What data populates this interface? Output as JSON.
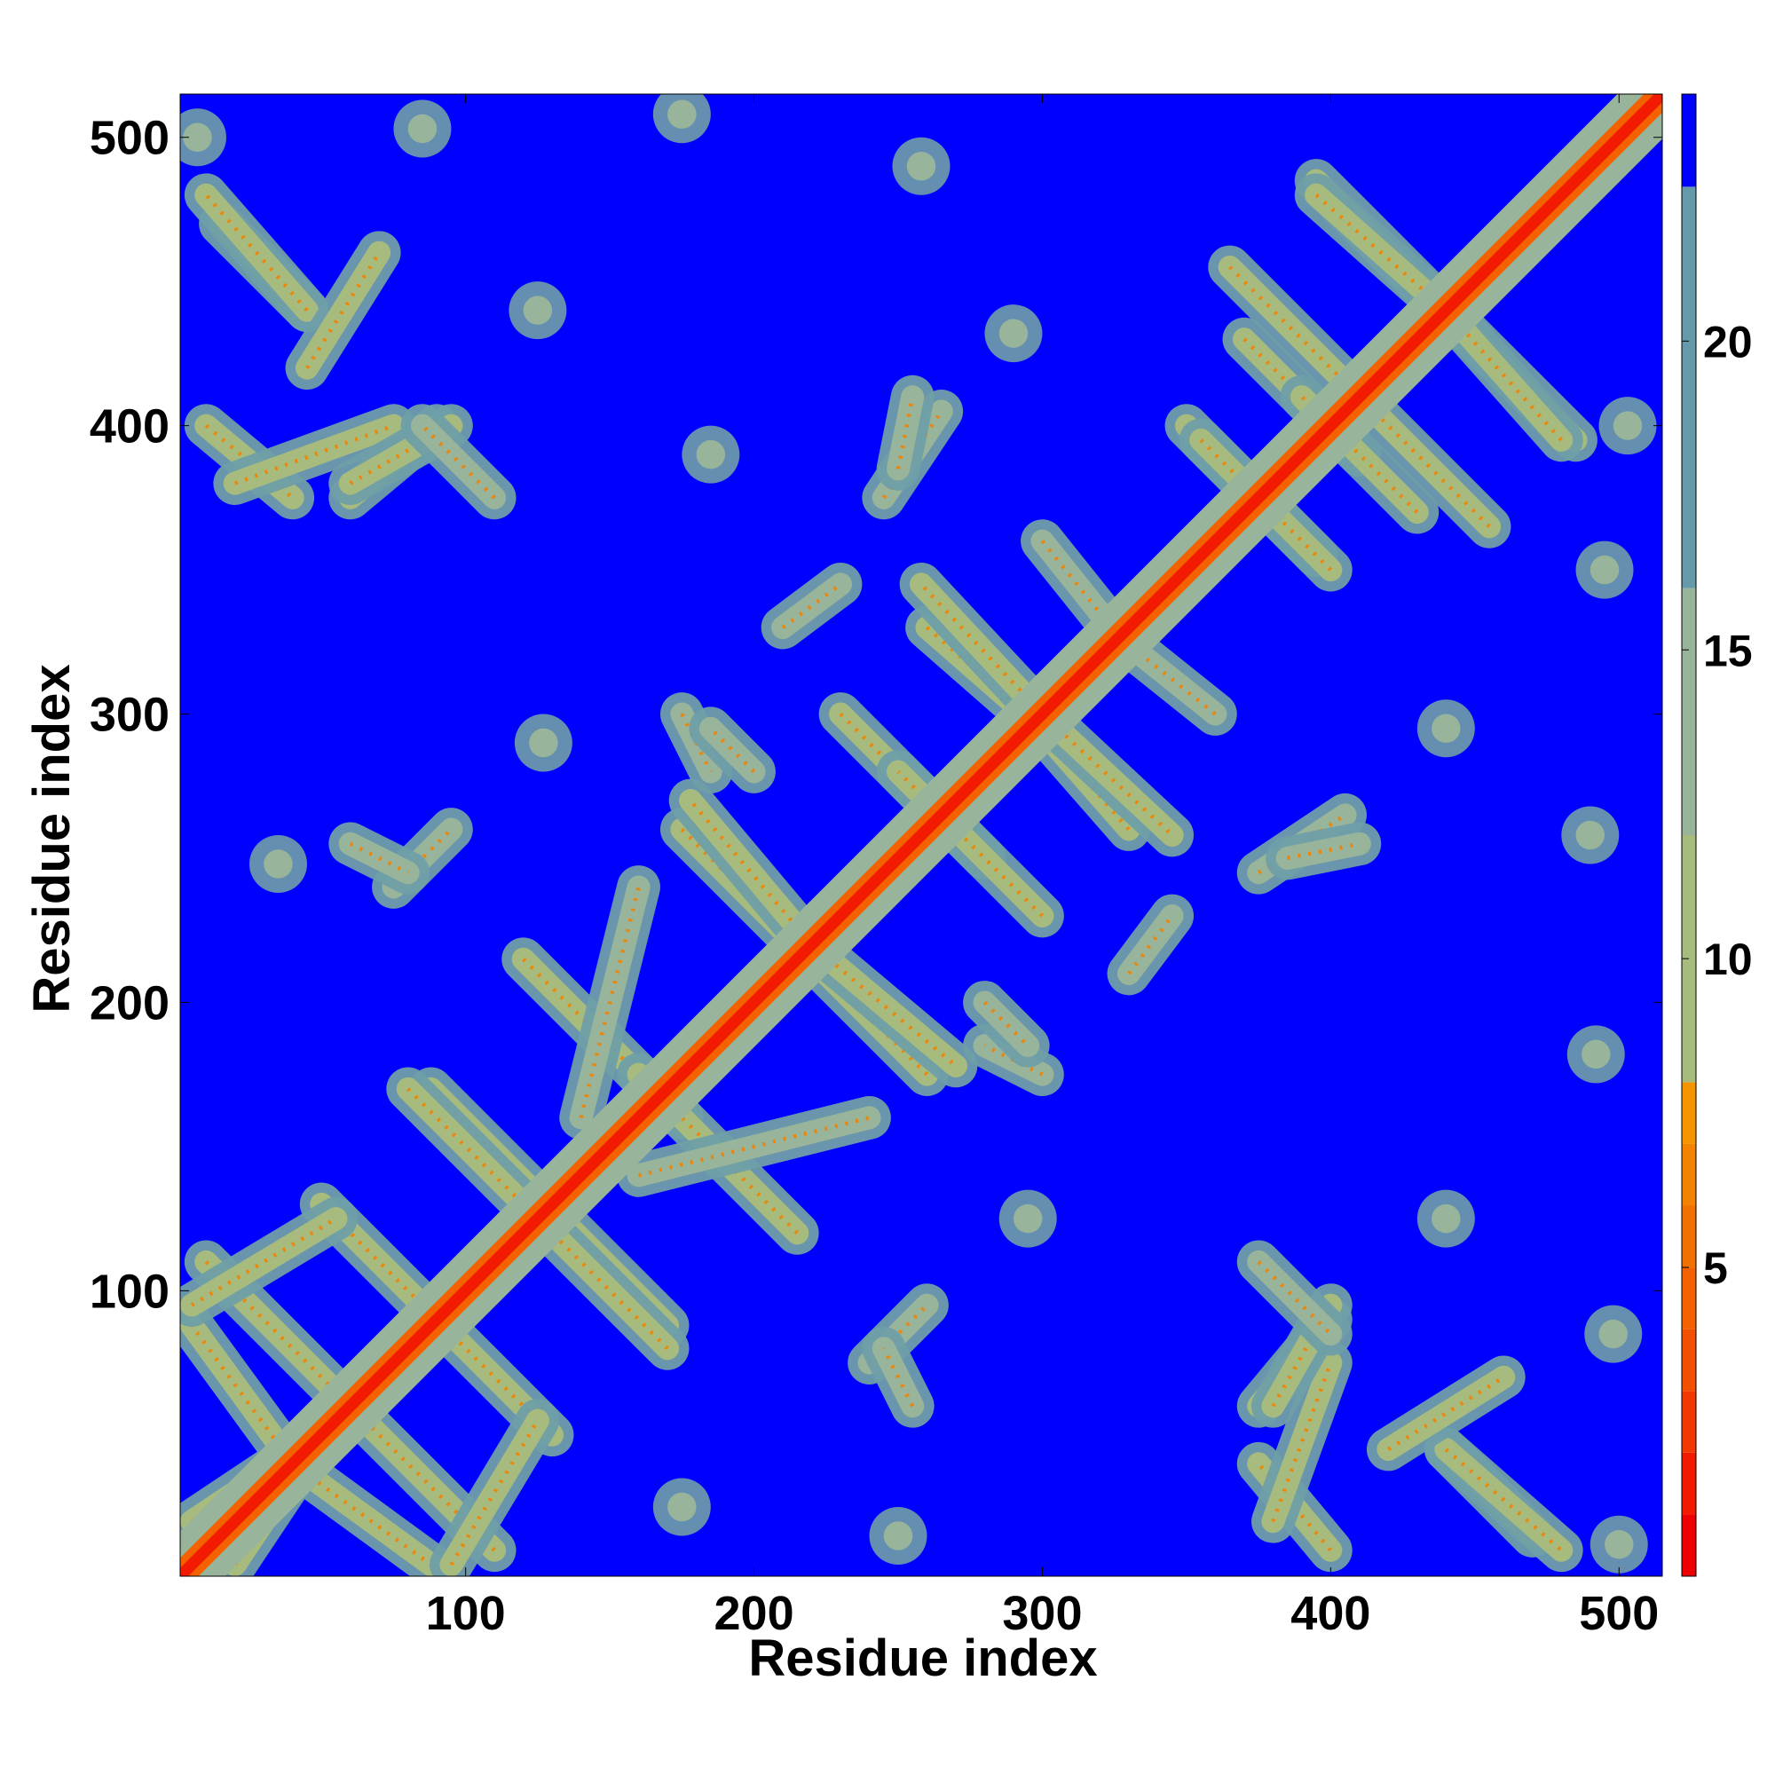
{
  "chart_data": {
    "type": "heatmap",
    "title": "",
    "xlabel": "Residue index",
    "ylabel": "Residue index",
    "xlim": [
      1,
      515
    ],
    "ylim": [
      1,
      515
    ],
    "x_ticks": [
      100,
      200,
      300,
      400,
      500
    ],
    "y_ticks": [
      100,
      200,
      300,
      400,
      500
    ],
    "colorbar": {
      "ticks": [
        5,
        10,
        15,
        20
      ],
      "range": [
        0,
        24
      ],
      "bands": [
        {
          "from": 0,
          "to": 1,
          "color": "#ee0000"
        },
        {
          "from": 1,
          "to": 2,
          "color": "#f21a00"
        },
        {
          "from": 2,
          "to": 3,
          "color": "#f23800"
        },
        {
          "from": 3,
          "to": 4,
          "color": "#f25000"
        },
        {
          "from": 4,
          "to": 5,
          "color": "#f46200"
        },
        {
          "from": 5,
          "to": 6,
          "color": "#f27000"
        },
        {
          "from": 6,
          "to": 7,
          "color": "#f28200"
        },
        {
          "from": 7,
          "to": 8,
          "color": "#f49400"
        },
        {
          "from": 8,
          "to": 12,
          "color": "#a8bb7e"
        },
        {
          "from": 12,
          "to": 16,
          "color": "#98b49a"
        },
        {
          "from": 16,
          "to": 22.5,
          "color": "#6699aa"
        },
        {
          "from": 22.5,
          "to": 24,
          "color": "#0000ff"
        }
      ]
    },
    "background_value": 24,
    "diagonal": {
      "from": 1,
      "to": 515,
      "value": 1
    },
    "segments": [
      {
        "x1": 10,
        "y1": 110,
        "x2": 62,
        "y2": 58,
        "value": 10
      },
      {
        "x1": 40,
        "y1": 40,
        "x2": 88,
        "y2": 5,
        "value": 10
      },
      {
        "x1": 50,
        "y1": 130,
        "x2": 92,
        "y2": 88,
        "value": 10
      },
      {
        "x1": 88,
        "y1": 170,
        "x2": 128,
        "y2": 130,
        "value": 10
      },
      {
        "x1": 125,
        "y1": 125,
        "x2": 170,
        "y2": 80,
        "value": 10
      },
      {
        "x1": 120,
        "y1": 215,
        "x2": 175,
        "y2": 160,
        "value": 10
      },
      {
        "x1": 175,
        "y1": 260,
        "x2": 215,
        "y2": 220,
        "value": 10
      },
      {
        "x1": 220,
        "y1": 220,
        "x2": 270,
        "y2": 178,
        "value": 10
      },
      {
        "x1": 230,
        "y1": 300,
        "x2": 280,
        "y2": 250,
        "value": 10
      },
      {
        "x1": 260,
        "y1": 330,
        "x2": 300,
        "y2": 295,
        "value": 10
      },
      {
        "x1": 300,
        "y1": 300,
        "x2": 345,
        "y2": 258,
        "value": 10
      },
      {
        "x1": 350,
        "y1": 400,
        "x2": 395,
        "y2": 355,
        "value": 10
      },
      {
        "x1": 370,
        "y1": 430,
        "x2": 410,
        "y2": 390,
        "value": 10
      },
      {
        "x1": 410,
        "y1": 410,
        "x2": 455,
        "y2": 365,
        "value": 10
      },
      {
        "x1": 440,
        "y1": 440,
        "x2": 485,
        "y2": 395,
        "value": 10
      },
      {
        "x1": 395,
        "y1": 480,
        "x2": 440,
        "y2": 440,
        "value": 10
      },
      {
        "x1": 10,
        "y1": 400,
        "x2": 40,
        "y2": 375,
        "value": 11
      },
      {
        "x1": 60,
        "y1": 375,
        "x2": 90,
        "y2": 400,
        "value": 11
      },
      {
        "x1": 15,
        "y1": 470,
        "x2": 45,
        "y2": 440,
        "value": 11
      },
      {
        "x1": 95,
        "y1": 5,
        "x2": 125,
        "y2": 55,
        "value": 11
      },
      {
        "x1": 20,
        "y1": 5,
        "x2": 50,
        "y2": 50,
        "value": 11
      },
      {
        "x1": 380,
        "y1": 20,
        "x2": 400,
        "y2": 75,
        "value": 11
      },
      {
        "x1": 440,
        "y1": 45,
        "x2": 480,
        "y2": 10,
        "value": 11
      },
      {
        "x1": 380,
        "y1": 60,
        "x2": 400,
        "y2": 95,
        "value": 11
      },
      {
        "x1": 420,
        "y1": 45,
        "x2": 460,
        "y2": 70,
        "value": 11
      },
      {
        "x1": 245,
        "y1": 375,
        "x2": 265,
        "y2": 405,
        "value": 12
      },
      {
        "x1": 175,
        "y1": 300,
        "x2": 185,
        "y2": 280,
        "value": 12
      },
      {
        "x1": 140,
        "y1": 160,
        "x2": 160,
        "y2": 240,
        "value": 12
      },
      {
        "x1": 240,
        "y1": 75,
        "x2": 260,
        "y2": 95,
        "value": 12
      },
      {
        "x1": 280,
        "y1": 200,
        "x2": 295,
        "y2": 185,
        "value": 12
      },
      {
        "x1": 385,
        "y1": 250,
        "x2": 410,
        "y2": 255,
        "value": 12
      },
      {
        "x1": 330,
        "y1": 210,
        "x2": 345,
        "y2": 230,
        "value": 12
      },
      {
        "x1": 375,
        "y1": 110,
        "x2": 400,
        "y2": 85,
        "value": 12
      },
      {
        "x1": 60,
        "y1": 255,
        "x2": 80,
        "y2": 245,
        "value": 12
      },
      {
        "x1": 300,
        "y1": 360,
        "x2": 320,
        "y2": 335,
        "value": 12
      }
    ],
    "blobs": [
      {
        "x": 7,
        "y": 500,
        "value": 13
      },
      {
        "x": 85,
        "y": 503,
        "value": 13
      },
      {
        "x": 175,
        "y": 508,
        "value": 13
      },
      {
        "x": 258,
        "y": 490,
        "value": 13
      },
      {
        "x": 125,
        "y": 440,
        "value": 13
      },
      {
        "x": 290,
        "y": 432,
        "value": 13
      },
      {
        "x": 185,
        "y": 390,
        "value": 13
      },
      {
        "x": 127,
        "y": 290,
        "value": 13
      },
      {
        "x": 35,
        "y": 248,
        "value": 13
      },
      {
        "x": 440,
        "y": 125,
        "value": 13
      },
      {
        "x": 490,
        "y": 258,
        "value": 13
      },
      {
        "x": 440,
        "y": 295,
        "value": 13
      },
      {
        "x": 492,
        "y": 182,
        "value": 13
      },
      {
        "x": 498,
        "y": 85,
        "value": 13
      },
      {
        "x": 500,
        "y": 12,
        "value": 13
      },
      {
        "x": 495,
        "y": 350,
        "value": 13
      },
      {
        "x": 503,
        "y": 400,
        "value": 13
      },
      {
        "x": 295,
        "y": 125,
        "value": 13
      },
      {
        "x": 175,
        "y": 25,
        "value": 13
      },
      {
        "x": 250,
        "y": 15,
        "value": 13
      }
    ]
  }
}
